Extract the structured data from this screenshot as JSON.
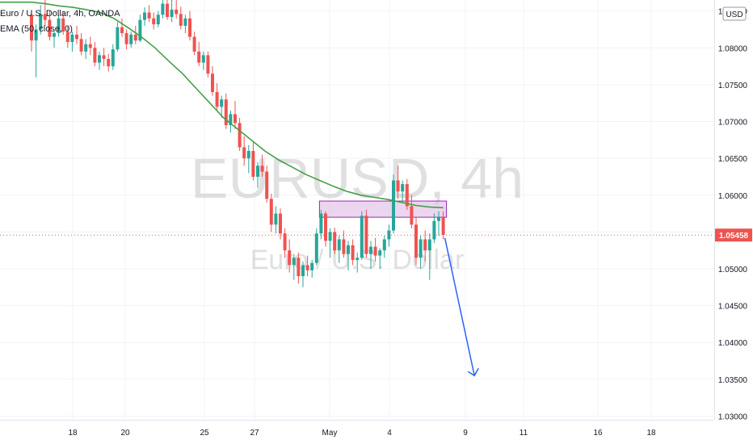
{
  "header": {
    "title": "Euro / U.S. Dollar, 4h, OANDA",
    "indicator": "EMA (50, close, 0)",
    "currency_badge": "USD"
  },
  "watermark": {
    "symbol": "EURUSD, 4h",
    "name": "Euro / U.S. Dollar"
  },
  "colors": {
    "up": "#26a69a",
    "down": "#ef5350",
    "ema": "#43a047",
    "zone_fill": "#e1bee7",
    "zone_border": "#9c27b0",
    "arrow": "#2962ff",
    "price_label": "#ef5350"
  },
  "chart_data": {
    "type": "candlestick",
    "symbol": "EURUSD",
    "timeframe": "4h",
    "x_tick_labels": [
      "18",
      "20",
      "25",
      "27",
      "May",
      "4",
      "9",
      "11",
      "16",
      "18"
    ],
    "y_tick_labels": [
      "1.03000",
      "1.03500",
      "1.04000",
      "1.04500",
      "1.05000",
      "1.05500",
      "1.06000",
      "1.06500",
      "1.07000",
      "1.07500",
      "1.08000",
      "1.08500"
    ],
    "ylim": [
      1.0295,
      1.0865
    ],
    "last_price": 1.05458,
    "last_price_label": "1.05458",
    "grid": true,
    "ohlc": [
      [
        1.0845,
        1.085,
        1.0795,
        1.081
      ],
      [
        1.081,
        1.0832,
        1.076,
        1.0825
      ],
      [
        1.0825,
        1.0858,
        1.0818,
        1.0846
      ],
      [
        1.0846,
        1.0866,
        1.083,
        1.0838
      ],
      [
        1.0838,
        1.085,
        1.081,
        1.0815
      ],
      [
        1.0815,
        1.0825,
        1.08,
        1.082
      ],
      [
        1.082,
        1.0845,
        1.0815,
        1.084
      ],
      [
        1.084,
        1.0848,
        1.0818,
        1.0822
      ],
      [
        1.0822,
        1.083,
        1.08,
        1.0808
      ],
      [
        1.0808,
        1.0822,
        1.0795,
        1.0818
      ],
      [
        1.0818,
        1.083,
        1.0805,
        1.0812
      ],
      [
        1.0812,
        1.082,
        1.079,
        1.0795
      ],
      [
        1.0795,
        1.0812,
        1.0785,
        1.0805
      ],
      [
        1.0805,
        1.0815,
        1.079,
        1.08
      ],
      [
        1.08,
        1.0808,
        1.0775,
        1.078
      ],
      [
        1.078,
        1.0795,
        1.077,
        1.079
      ],
      [
        1.079,
        1.08,
        1.0775,
        1.0785
      ],
      [
        1.0785,
        1.0792,
        1.0768,
        1.0775
      ],
      [
        1.0775,
        1.0805,
        1.077,
        1.0798
      ],
      [
        1.0798,
        1.0835,
        1.0795,
        1.0828
      ],
      [
        1.0828,
        1.084,
        1.0815,
        1.082
      ],
      [
        1.082,
        1.0825,
        1.0798,
        1.0805
      ],
      [
        1.0805,
        1.0822,
        1.08,
        1.0818
      ],
      [
        1.0818,
        1.083,
        1.0805,
        1.081
      ],
      [
        1.081,
        1.0845,
        1.0808,
        1.0838
      ],
      [
        1.0838,
        1.0855,
        1.083,
        1.0848
      ],
      [
        1.0848,
        1.0858,
        1.0835,
        1.084
      ],
      [
        1.084,
        1.0848,
        1.0825,
        1.0832
      ],
      [
        1.0832,
        1.085,
        1.0828,
        1.0845
      ],
      [
        1.0845,
        1.0866,
        1.084,
        1.086
      ],
      [
        1.086,
        1.0866,
        1.0838,
        1.0842
      ],
      [
        1.0842,
        1.0866,
        1.0835,
        1.0852
      ],
      [
        1.0852,
        1.0866,
        1.084,
        1.0846
      ],
      [
        1.0846,
        1.0856,
        1.0825,
        1.083
      ],
      [
        1.083,
        1.0845,
        1.082,
        1.084
      ],
      [
        1.084,
        1.085,
        1.081,
        1.0815
      ],
      [
        1.0815,
        1.0822,
        1.079,
        1.0795
      ],
      [
        1.0795,
        1.0808,
        1.0775,
        1.078
      ],
      [
        1.078,
        1.0795,
        1.077,
        1.079
      ],
      [
        1.079,
        1.0795,
        1.076,
        1.0765
      ],
      [
        1.0765,
        1.0775,
        1.0735,
        1.074
      ],
      [
        1.074,
        1.0752,
        1.0715,
        1.072
      ],
      [
        1.072,
        1.0735,
        1.0705,
        1.073
      ],
      [
        1.073,
        1.0738,
        1.069,
        1.0695
      ],
      [
        1.0695,
        1.0715,
        1.0685,
        1.071
      ],
      [
        1.071,
        1.0728,
        1.069,
        1.0698
      ],
      [
        1.0698,
        1.0705,
        1.066,
        1.0665
      ],
      [
        1.0665,
        1.068,
        1.064,
        1.065
      ],
      [
        1.065,
        1.0668,
        1.063,
        1.066
      ],
      [
        1.066,
        1.0672,
        1.062,
        1.0625
      ],
      [
        1.0625,
        1.0645,
        1.061,
        1.064
      ],
      [
        1.064,
        1.0655,
        1.0625,
        1.0632
      ],
      [
        1.0632,
        1.064,
        1.059,
        1.0595
      ],
      [
        1.0595,
        1.0602,
        1.055,
        1.056
      ],
      [
        1.056,
        1.0585,
        1.0548,
        1.0575
      ],
      [
        1.0575,
        1.0582,
        1.054,
        1.0548
      ],
      [
        1.0548,
        1.0555,
        1.0515,
        1.0525
      ],
      [
        1.0525,
        1.054,
        1.0495,
        1.0505
      ],
      [
        1.0505,
        1.052,
        1.0485,
        1.0515
      ],
      [
        1.0515,
        1.0522,
        1.048,
        1.049
      ],
      [
        1.049,
        1.051,
        1.0475,
        1.0505
      ],
      [
        1.0505,
        1.0518,
        1.049,
        1.0498
      ],
      [
        1.0498,
        1.0512,
        1.0488,
        1.0508
      ],
      [
        1.0508,
        1.0555,
        1.0505,
        1.0548
      ],
      [
        1.0548,
        1.058,
        1.054,
        1.0575
      ],
      [
        1.0575,
        1.0578,
        1.053,
        1.0538
      ],
      [
        1.0538,
        1.0555,
        1.0515,
        1.055
      ],
      [
        1.055,
        1.0556,
        1.052,
        1.0525
      ],
      [
        1.0525,
        1.0545,
        1.0508,
        1.054
      ],
      [
        1.054,
        1.0552,
        1.0515,
        1.052
      ],
      [
        1.052,
        1.0538,
        1.0498,
        1.0532
      ],
      [
        1.0532,
        1.054,
        1.0505,
        1.0512
      ],
      [
        1.0512,
        1.0522,
        1.0495,
        1.0515
      ],
      [
        1.0515,
        1.0578,
        1.0512,
        1.0572
      ],
      [
        1.0572,
        1.058,
        1.0515,
        1.052
      ],
      [
        1.052,
        1.0538,
        1.05,
        1.053
      ],
      [
        1.053,
        1.0542,
        1.051,
        1.0518
      ],
      [
        1.0518,
        1.0528,
        1.05,
        1.0525
      ],
      [
        1.0525,
        1.0545,
        1.0515,
        1.054
      ],
      [
        1.054,
        1.056,
        1.053,
        1.0552
      ],
      [
        1.0552,
        1.0628,
        1.0548,
        1.062
      ],
      [
        1.062,
        1.064,
        1.0595,
        1.0605
      ],
      [
        1.0605,
        1.062,
        1.059,
        1.0615
      ],
      [
        1.0615,
        1.0622,
        1.058,
        1.0585
      ],
      [
        1.0585,
        1.06,
        1.0555,
        1.056
      ],
      [
        1.056,
        1.057,
        1.0505,
        1.0515
      ],
      [
        1.0515,
        1.0545,
        1.05,
        1.054
      ],
      [
        1.054,
        1.0552,
        1.051,
        1.0525
      ],
      [
        1.0525,
        1.0548,
        1.0485,
        1.054
      ],
      [
        1.054,
        1.0575,
        1.0535,
        1.0565
      ],
      [
        1.0565,
        1.0578,
        1.0545,
        1.057
      ],
      [
        1.057,
        1.0578,
        1.054,
        1.0546
      ]
    ],
    "ema_50_close": [
      1.0862,
      1.086,
      1.0857,
      1.0855,
      1.0852,
      1.0848,
      1.084,
      1.0828,
      1.0815,
      1.08,
      1.0782,
      1.0765,
      1.0745,
      1.0725,
      1.0705,
      1.069,
      1.0675,
      1.066,
      1.0648,
      1.0638,
      1.0628,
      1.062,
      1.0612,
      1.0605,
      1.06,
      1.0597,
      1.0594,
      1.059,
      1.0586,
      1.0584,
      1.0583
    ],
    "annotations": {
      "resistance_zone": {
        "from_candle": 64,
        "to_candle": 91,
        "low": 1.057,
        "high": 1.0592
      },
      "forecast_arrow": {
        "from_candle": 91,
        "from_price": 1.0542,
        "to_candle": 97,
        "to_price": 1.0355
      }
    }
  }
}
